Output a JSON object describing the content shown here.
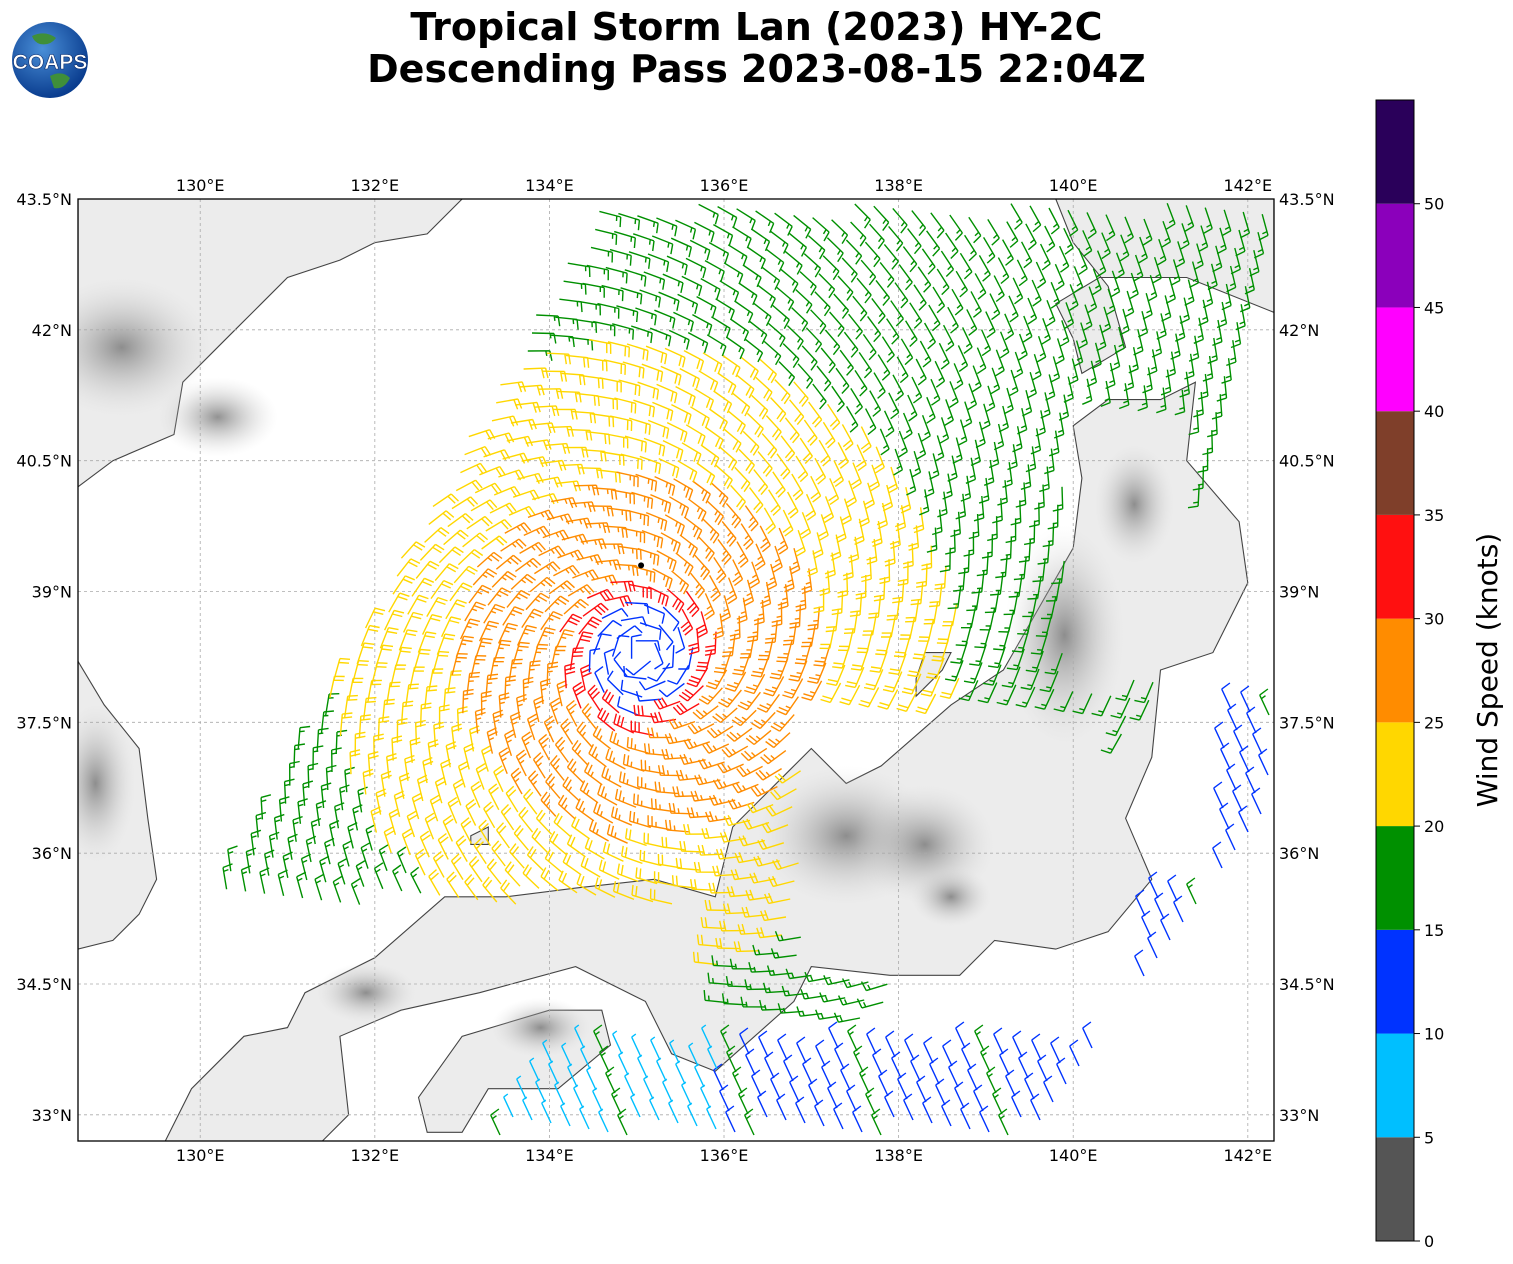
{
  "header": {
    "title_line1": "Tropical Storm Lan (2023) HY-2C",
    "title_line2": "Descending Pass 2023-08-15 22:04Z"
  },
  "logo": {
    "text": "COAPS",
    "icon": "globe-logo-icon"
  },
  "map": {
    "lon_range": [
      128.6,
      142.3
    ],
    "lat_range": [
      32.7,
      43.5
    ],
    "lon_ticks": [
      {
        "value": 130,
        "label": "130°E"
      },
      {
        "value": 132,
        "label": "132°E"
      },
      {
        "value": 134,
        "label": "134°E"
      },
      {
        "value": 136,
        "label": "136°E"
      },
      {
        "value": 138,
        "label": "138°E"
      },
      {
        "value": 140,
        "label": "140°E"
      },
      {
        "value": 142,
        "label": "142°E"
      }
    ],
    "lat_ticks": [
      {
        "value": 43.5,
        "label": "43.5°N"
      },
      {
        "value": 42,
        "label": "42°N"
      },
      {
        "value": 40.5,
        "label": "40.5°N"
      },
      {
        "value": 39,
        "label": "39°N"
      },
      {
        "value": 37.5,
        "label": "37.5°N"
      },
      {
        "value": 36,
        "label": "36°N"
      },
      {
        "value": 34.5,
        "label": "34.5°N"
      },
      {
        "value": 33,
        "label": "33°N"
      }
    ],
    "grid": true,
    "storm_center": {
      "lon": 135.05,
      "lat": 39.3
    }
  },
  "colorbar": {
    "label": "Wind Speed (knots)",
    "ticks": [
      "0",
      "5",
      "10",
      "15",
      "20",
      "25",
      "30",
      "35",
      "40",
      "45",
      "50"
    ],
    "bins": [
      {
        "from": 0,
        "to": 5,
        "color": "#555555"
      },
      {
        "from": 5,
        "to": 10,
        "color": "#00bfff"
      },
      {
        "from": 10,
        "to": 15,
        "color": "#0033ff"
      },
      {
        "from": 15,
        "to": 20,
        "color": "#009000"
      },
      {
        "from": 20,
        "to": 25,
        "color": "#ffd700"
      },
      {
        "from": 25,
        "to": 30,
        "color": "#ff8c00"
      },
      {
        "from": 30,
        "to": 35,
        "color": "#ff1010"
      },
      {
        "from": 35,
        "to": 40,
        "color": "#7f3f2a"
      },
      {
        "from": 40,
        "to": 45,
        "color": "#ff00ff"
      },
      {
        "from": 45,
        "to": 50,
        "color": "#8b00bb"
      },
      {
        "from": 50,
        "to": 55,
        "color": "#2a005a"
      }
    ]
  }
}
